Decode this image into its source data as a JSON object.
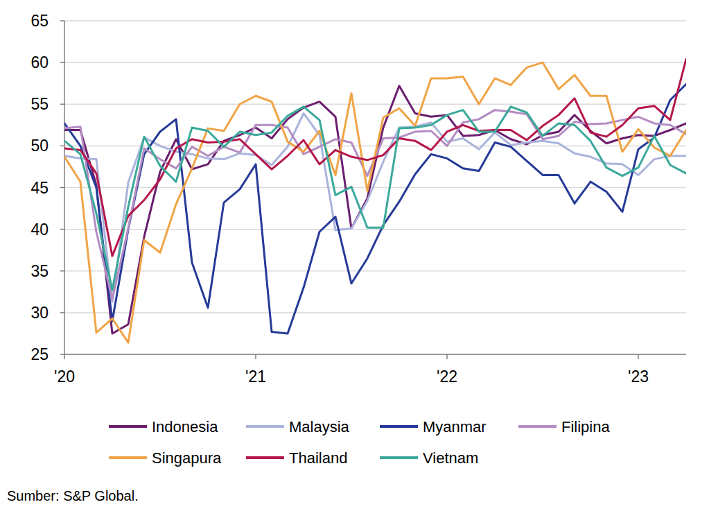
{
  "chart_data": {
    "type": "line",
    "categories": [
      "'20",
      null,
      null,
      null,
      null,
      null,
      null,
      null,
      null,
      null,
      null,
      null,
      "'21",
      null,
      null,
      null,
      null,
      null,
      null,
      null,
      null,
      null,
      null,
      null,
      "'22",
      null,
      null,
      null,
      null,
      null,
      null,
      null,
      null,
      null,
      null,
      null,
      "'23",
      null,
      null,
      null
    ],
    "series": [
      {
        "name": "Indonesia",
        "color": "#6b1e6e",
        "values": [
          51.9,
          51.9,
          45.3,
          27.5,
          28.6,
          39.1,
          46.9,
          50.8,
          47.2,
          47.8,
          50.6,
          51.3,
          52.2,
          50.9,
          53.2,
          54.6,
          55.3,
          53.5,
          40.1,
          43.7,
          52.2,
          57.2,
          53.9,
          53.5,
          53.7,
          51.2,
          51.3,
          51.9,
          50.8,
          50.2,
          51.3,
          51.7,
          53.7,
          51.8,
          50.3,
          50.9,
          51.3,
          51.2,
          51.9,
          52.7
        ]
      },
      {
        "name": "Malaysia",
        "color": "#aab4dc",
        "values": [
          48.8,
          48.5,
          48.4,
          31.3,
          45.6,
          51.0,
          50.0,
          49.3,
          49.0,
          48.5,
          48.4,
          49.1,
          48.9,
          47.7,
          49.9,
          53.9,
          51.3,
          39.9,
          40.1,
          43.4,
          48.1,
          52.2,
          52.3,
          52.8,
          50.5,
          50.9,
          49.6,
          51.6,
          50.1,
          50.4,
          50.6,
          50.3,
          49.1,
          48.7,
          47.9,
          47.8,
          46.5,
          48.4,
          48.8,
          48.8
        ]
      },
      {
        "name": "Myanmar",
        "color": "#253a98",
        "values": [
          52.7,
          50.0,
          45.0,
          29.0,
          40.0,
          49.0,
          51.7,
          53.2,
          36.0,
          30.6,
          43.2,
          44.8,
          47.8,
          27.7,
          27.5,
          33.0,
          39.7,
          41.5,
          33.5,
          36.5,
          40.5,
          43.3,
          46.6,
          49.0,
          48.5,
          47.3,
          47.0,
          50.4,
          49.9,
          48.2,
          46.5,
          46.5,
          43.1,
          45.7,
          44.5,
          42.1,
          49.6,
          51.0,
          55.5,
          57.4
        ]
      },
      {
        "name": "Filipina",
        "color": "#b48cc3",
        "values": [
          52.1,
          52.3,
          39.7,
          31.6,
          40.1,
          49.7,
          48.4,
          47.3,
          49.9,
          48.8,
          49.9,
          49.2,
          52.5,
          52.5,
          52.2,
          49.0,
          49.9,
          50.8,
          50.4,
          46.4,
          50.9,
          51.0,
          51.7,
          51.8,
          50.0,
          52.8,
          53.2,
          54.3,
          54.1,
          53.8,
          50.8,
          51.2,
          52.9,
          52.6,
          52.7,
          53.1,
          53.5,
          52.7,
          52.5,
          51.4
        ]
      },
      {
        "name": "Singapura",
        "color": "#f0a445",
        "values": [
          48.7,
          45.7,
          27.6,
          29.3,
          26.4,
          38.7,
          37.2,
          43.0,
          47.3,
          52.1,
          51.8,
          55.0,
          56.0,
          55.3,
          50.5,
          49.3,
          51.8,
          46.5,
          56.3,
          44.6,
          53.4,
          54.5,
          52.4,
          58.1,
          58.1,
          58.3,
          55.0,
          58.1,
          57.3,
          59.4,
          60.0,
          56.8,
          58.5,
          56.0,
          56.0,
          49.3,
          52.0,
          49.8,
          48.8,
          51.9
        ]
      },
      {
        "name": "Thailand",
        "color": "#b5174b",
        "values": [
          49.7,
          49.5,
          46.7,
          36.8,
          41.6,
          43.5,
          46.0,
          49.7,
          50.8,
          50.4,
          50.5,
          50.8,
          49.0,
          47.2,
          48.8,
          50.7,
          47.8,
          49.5,
          48.7,
          48.3,
          48.9,
          50.9,
          50.6,
          49.5,
          51.7,
          52.5,
          51.8,
          51.9,
          51.9,
          50.7,
          52.4,
          53.7,
          55.7,
          51.6,
          51.1,
          52.5,
          54.5,
          54.8,
          53.1,
          60.4
        ]
      },
      {
        "name": "Vietnam",
        "color": "#3aa99a",
        "values": [
          50.6,
          49.0,
          41.9,
          32.7,
          42.7,
          51.1,
          47.6,
          45.7,
          52.2,
          51.8,
          49.9,
          51.7,
          51.3,
          51.6,
          53.6,
          54.7,
          53.1,
          44.1,
          45.1,
          40.2,
          40.2,
          52.1,
          52.2,
          52.5,
          53.7,
          54.3,
          51.7,
          51.7,
          54.7,
          54.0,
          51.2,
          52.7,
          52.5,
          50.6,
          47.4,
          46.4,
          47.4,
          51.2,
          47.7,
          46.7
        ]
      }
    ],
    "ylim": [
      25,
      65
    ],
    "yticks": [
      25,
      30,
      35,
      40,
      45,
      50,
      55,
      60,
      65
    ],
    "grid": true,
    "legend": "bottom",
    "source": "Sumber: S&P Global."
  }
}
